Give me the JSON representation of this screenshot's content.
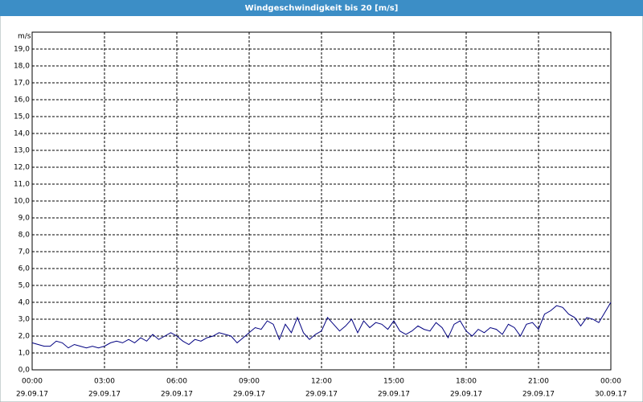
{
  "chart_data": {
    "type": "line",
    "title": "Windgeschwindigkeit bis 20 [m/s]",
    "y_label": "m/s",
    "x": [
      0,
      0.25,
      0.5,
      0.75,
      1,
      1.25,
      1.5,
      1.75,
      2,
      2.25,
      2.5,
      2.75,
      3,
      3.25,
      3.5,
      3.75,
      4,
      4.25,
      4.5,
      4.75,
      5,
      5.25,
      5.5,
      5.75,
      6,
      6.25,
      6.5,
      6.75,
      7,
      7.25,
      7.5,
      7.75,
      8,
      8.25,
      8.5,
      8.75,
      9,
      9.25,
      9.5,
      9.75,
      10,
      10.25,
      10.5,
      10.75,
      11,
      11.25,
      11.5,
      11.75,
      12,
      12.25,
      12.5,
      12.75,
      13,
      13.25,
      13.5,
      13.75,
      14,
      14.25,
      14.5,
      14.75,
      15,
      15.25,
      15.5,
      15.75,
      16,
      16.25,
      16.5,
      16.75,
      17,
      17.25,
      17.5,
      17.75,
      18,
      18.25,
      18.5,
      18.75,
      19,
      19.25,
      19.5,
      19.75,
      20,
      20.25,
      20.5,
      20.75,
      21,
      21.25,
      21.5,
      21.75,
      22,
      22.25,
      22.5,
      22.75,
      23,
      23.25,
      23.5,
      23.75,
      24
    ],
    "series": [
      {
        "color": "#000080",
        "values": [
          1.6,
          1.5,
          1.4,
          1.4,
          1.7,
          1.6,
          1.3,
          1.5,
          1.4,
          1.3,
          1.4,
          1.3,
          1.4,
          1.6,
          1.7,
          1.6,
          1.8,
          1.6,
          1.9,
          1.7,
          2.1,
          1.8,
          2.0,
          2.2,
          2.0,
          1.7,
          1.5,
          1.8,
          1.7,
          1.9,
          2.0,
          2.2,
          2.1,
          2.0,
          1.6,
          1.9,
          2.2,
          2.5,
          2.4,
          2.9,
          2.7,
          1.8,
          2.7,
          2.2,
          3.1,
          2.2,
          1.8,
          2.1,
          2.3,
          3.1,
          2.7,
          2.3,
          2.6,
          3.0,
          2.2,
          2.9,
          2.5,
          2.8,
          2.7,
          2.4,
          2.9,
          2.3,
          2.1,
          2.3,
          2.6,
          2.4,
          2.3,
          2.8,
          2.5,
          1.9,
          2.7,
          2.9,
          2.3,
          2.0,
          2.4,
          2.2,
          2.5,
          2.4,
          2.1,
          2.7,
          2.5,
          2.0,
          2.7,
          2.8,
          2.4,
          3.3,
          3.5,
          3.8,
          3.7,
          3.3,
          3.1,
          2.6,
          3.1,
          3.0,
          2.8,
          3.4,
          4.0
        ]
      }
    ],
    "xlim": [
      0,
      24
    ],
    "xticks": [
      {
        "value": 0,
        "label": "00:00"
      },
      {
        "value": 3,
        "label": "03:00"
      },
      {
        "value": 6,
        "label": "06:00"
      },
      {
        "value": 9,
        "label": "09:00"
      },
      {
        "value": 12,
        "label": "12:00"
      },
      {
        "value": 15,
        "label": "15:00"
      },
      {
        "value": 18,
        "label": "18:00"
      },
      {
        "value": 21,
        "label": "21:00"
      },
      {
        "value": 24,
        "label": "00:00"
      }
    ],
    "xtick_dates": [
      "29.09.17",
      "29.09.17",
      "29.09.17",
      "29.09.17",
      "29.09.17",
      "29.09.17",
      "29.09.17",
      "29.09.17",
      "30.09.17"
    ],
    "ylim": [
      0,
      20
    ],
    "yticks": [
      {
        "value": 0,
        "label": "0,0"
      },
      {
        "value": 1,
        "label": "1,0"
      },
      {
        "value": 2,
        "label": "2,0"
      },
      {
        "value": 3,
        "label": "3,0"
      },
      {
        "value": 4,
        "label": "4,0"
      },
      {
        "value": 5,
        "label": "5,0"
      },
      {
        "value": 6,
        "label": "6,0"
      },
      {
        "value": 7,
        "label": "7,0"
      },
      {
        "value": 8,
        "label": "8,0"
      },
      {
        "value": 9,
        "label": "9,0"
      },
      {
        "value": 10,
        "label": "10,0"
      },
      {
        "value": 11,
        "label": "11,0"
      },
      {
        "value": 12,
        "label": "12,0"
      },
      {
        "value": 13,
        "label": "13,0"
      },
      {
        "value": 14,
        "label": "14,0"
      },
      {
        "value": 15,
        "label": "15,0"
      },
      {
        "value": 16,
        "label": "16,0"
      },
      {
        "value": 17,
        "label": "17,0"
      },
      {
        "value": 18,
        "label": "18,0"
      },
      {
        "value": 19,
        "label": "19,0"
      }
    ],
    "grid": true
  }
}
